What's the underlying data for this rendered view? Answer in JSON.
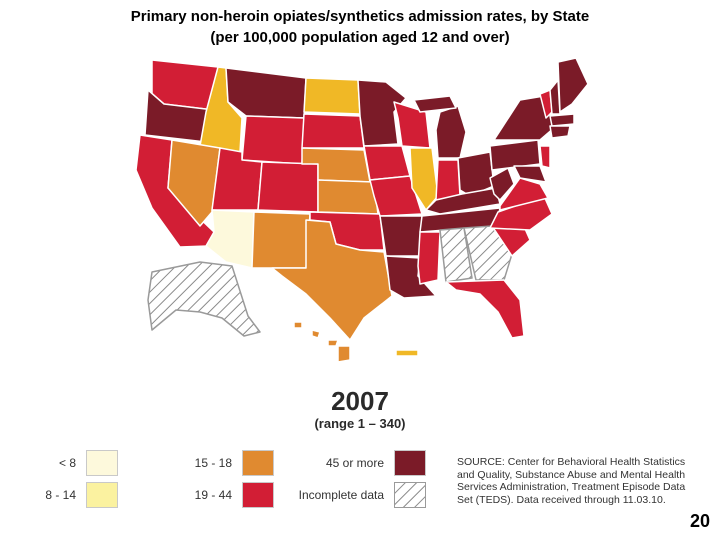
{
  "title_line1": "Primary non-heroin opiates/synthetics admission rates, by State",
  "title_line2": "(per 100,000 population aged 12 and over)",
  "map": {
    "year": "2007",
    "range": "(range 1 – 340)"
  },
  "legend": [
    {
      "label": "< 8",
      "color": "#fdf9dc"
    },
    {
      "label": "8 - 14",
      "color": "#fbf2a0"
    },
    {
      "label": "15 - 18",
      "color": "#e08a30"
    },
    {
      "label": "19 - 44",
      "color": "#d21e35"
    },
    {
      "label": "45 or more",
      "color": "#7b1b28"
    },
    {
      "label": "Incomplete data",
      "color": "hatched"
    }
  ],
  "source": "SOURCE: Center for Behavioral Health Statistics and Quality, Substance Abuse and Mental Health Services Administration, Treatment Episode Data Set (TEDS). Data received through 11.03.10.",
  "page_number": "20",
  "colors": {
    "lt8": "#fdf9dc",
    "r8_14": "#fbf2a0",
    "r15_18": "#e08a30",
    "r19_44": "#d21e35",
    "r45plus": "#7b1b28",
    "gold": "#f0b826",
    "incomplete": "hatched"
  }
}
